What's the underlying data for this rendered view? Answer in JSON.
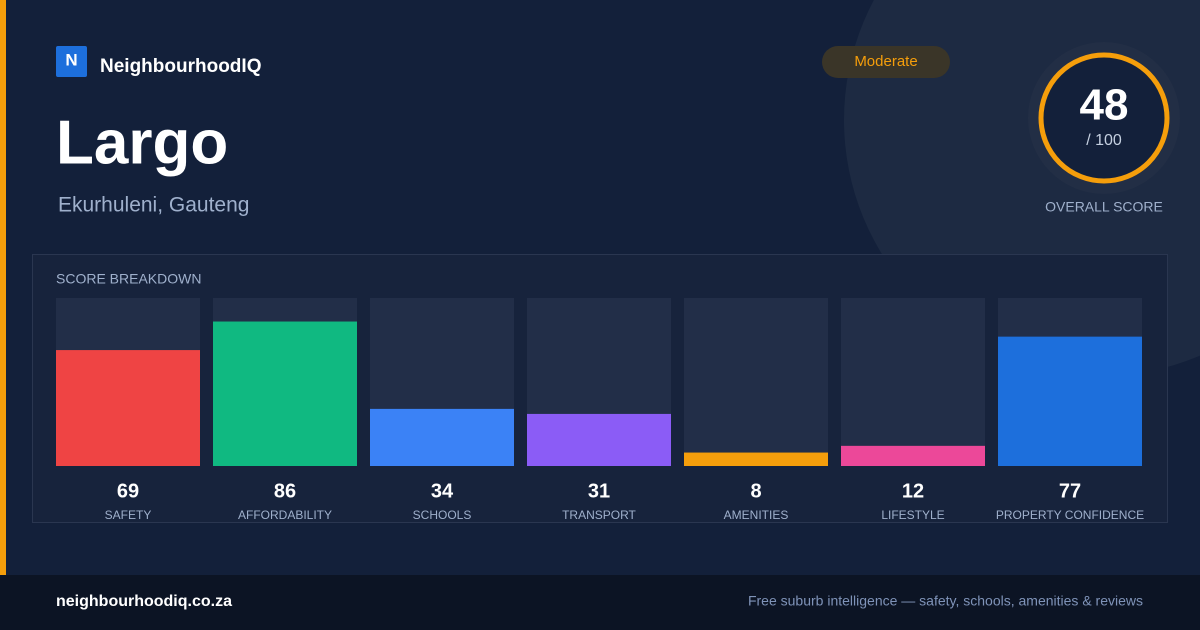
{
  "brand": {
    "logo": "N",
    "name": "NeighbourhoodIQ"
  },
  "suburb": {
    "name": "Largo",
    "region": "Ekurhuleni, Gauteng"
  },
  "badge": "Moderate",
  "overall": {
    "score": 48,
    "max_label": "/ 100",
    "label": "OVERALL SCORE"
  },
  "chart_data": {
    "type": "bar",
    "title": "SCORE BREAKDOWN",
    "categories": [
      "SAFETY",
      "AFFORDABILITY",
      "SCHOOLS",
      "TRANSPORT",
      "AMENITIES",
      "LIFESTYLE",
      "PROPERTY CONFIDENCE"
    ],
    "values": [
      69,
      86,
      34,
      31,
      8,
      12,
      77
    ],
    "colors": [
      "#ef4444",
      "#10b981",
      "#3b82f6",
      "#8b5cf6",
      "#f59e0b",
      "#ec4899",
      "#1d6fdc"
    ],
    "ylim": [
      0,
      100
    ]
  },
  "footer": {
    "site": "neighbourhoodiq.co.za",
    "tagline": "Free suburb intelligence — safety, schools, amenities & reviews"
  }
}
